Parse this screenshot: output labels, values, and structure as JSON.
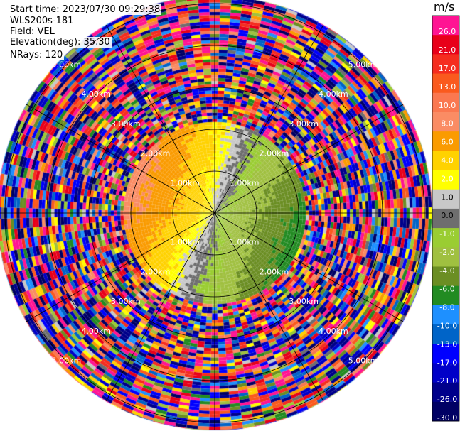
{
  "header": {
    "start_time": "Start time: 2023/07/30 09:29:38",
    "station": "WLS200s-181",
    "field": "Field: VEL",
    "elevation": "Elevation(deg): 35.30",
    "nrays": "NRays: 120"
  },
  "chart_data": {
    "type": "heatmap",
    "projection": "polar (PPI)",
    "field": "VEL",
    "units": "m/s",
    "nrays": 120,
    "elevation_deg": 35.3,
    "range_rings_km": [
      1.0,
      2.0,
      3.0,
      4.0,
      5.0,
      6.0,
      7.0
    ],
    "range_ring_labels": [
      "1.00km",
      "2.00km",
      "3.00km",
      "4.00km",
      "5.00km",
      "6.00km",
      "7.00km"
    ],
    "spoke_angles_deg": [
      0,
      30,
      60,
      90,
      120,
      150,
      180,
      210,
      240,
      270,
      300,
      330
    ],
    "valid_data_max_range_km": 2.2,
    "noise_beyond_valid_range": true,
    "colorbar": {
      "unit_label": "m/s",
      "ticks": [
        "26.0",
        "21.0",
        "17.0",
        "13.0",
        "10.0",
        "8.0",
        "6.0",
        "4.0",
        "2.0",
        "1.0",
        "0.0",
        "-1.0",
        "-2.0",
        "-4.0",
        "-6.0",
        "-8.0",
        "-10.0",
        "-13.0",
        "-17.0",
        "-21.0",
        "-26.0",
        "-30.0"
      ],
      "bins": [
        {
          "min": 21,
          "max": 26,
          "color": "#ff1493"
        },
        {
          "min": 17,
          "max": 21,
          "color": "#e8001a"
        },
        {
          "min": 13,
          "max": 17,
          "color": "#f52d1f"
        },
        {
          "min": 10,
          "max": 13,
          "color": "#fa5a1e"
        },
        {
          "min": 8,
          "max": 10,
          "color": "#fa7850"
        },
        {
          "min": 6,
          "max": 8,
          "color": "#fa8c64"
        },
        {
          "min": 4,
          "max": 6,
          "color": "#fa9b00"
        },
        {
          "min": 2,
          "max": 4,
          "color": "#ffd200"
        },
        {
          "min": 1,
          "max": 2,
          "color": "#ffff00"
        },
        {
          "min": 0,
          "max": 1,
          "color": "#c8c8c8"
        },
        {
          "min": -1,
          "max": 0,
          "color": "#6e6e6e"
        },
        {
          "min": -2,
          "max": -1,
          "color": "#9acd32"
        },
        {
          "min": -4,
          "max": -2,
          "color": "#a0c040"
        },
        {
          "min": -6,
          "max": -4,
          "color": "#6b8e23"
        },
        {
          "min": -8,
          "max": -6,
          "color": "#228b22"
        },
        {
          "min": -10,
          "max": -8,
          "color": "#1e90ff"
        },
        {
          "min": -13,
          "max": -10,
          "color": "#0064c8"
        },
        {
          "min": -17,
          "max": -13,
          "color": "#0000ff"
        },
        {
          "min": -21,
          "max": -17,
          "color": "#0000c8"
        },
        {
          "min": -26,
          "max": -21,
          "color": "#00008b"
        },
        {
          "min": -30,
          "max": -26,
          "color": "#000064"
        }
      ]
    }
  },
  "colors": {
    "ring_line": "#000000",
    "ring_label": "#ffffff",
    "background": "#ffffff"
  }
}
